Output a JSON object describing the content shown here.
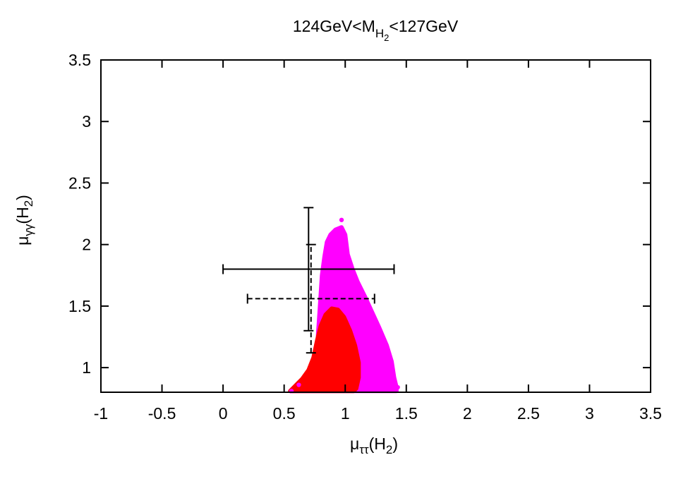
{
  "chart_data": {
    "type": "scatter",
    "title": {
      "pre": "124GeV<M",
      "sub": "H",
      "subsub": "2",
      "post": "<127GeV"
    },
    "xlabel": {
      "greek": "μ",
      "sub": "ττ",
      "paren": "(H",
      "paren_sub": "2",
      "close": ")"
    },
    "ylabel": {
      "greek": "μ",
      "sub": "γγ",
      "paren": "(H",
      "paren_sub": "2",
      "close": ")"
    },
    "xlim": [
      -1,
      3.5
    ],
    "ylim": [
      0.8,
      3.5
    ],
    "x_ticks": [
      -1,
      -0.5,
      0,
      0.5,
      1,
      1.5,
      2,
      2.5,
      3,
      3.5
    ],
    "x_tick_labels": [
      "-1",
      "-0.5",
      "0",
      "0.5",
      "1",
      "1.5",
      "2",
      "2.5",
      "3",
      "3.5"
    ],
    "y_ticks": [
      1,
      1.5,
      2,
      2.5,
      3,
      3.5
    ],
    "y_tick_labels": [
      "1",
      "1.5",
      "2",
      "2.5",
      "3",
      "3.5"
    ],
    "grid": false,
    "legend": "none",
    "regions": [
      {
        "color": "#ff00ff",
        "boundary": [
          [
            0.55,
            0.81
          ],
          [
            0.64,
            0.88
          ],
          [
            0.7,
            0.94
          ],
          [
            0.75,
            1.03
          ],
          [
            0.77,
            1.15
          ],
          [
            0.78,
            1.3
          ],
          [
            0.79,
            1.45
          ],
          [
            0.8,
            1.6
          ],
          [
            0.81,
            1.75
          ],
          [
            0.83,
            1.9
          ],
          [
            0.85,
            2.02
          ],
          [
            0.88,
            2.08
          ],
          [
            0.92,
            2.12
          ],
          [
            0.97,
            2.14
          ],
          [
            1.0,
            2.08
          ],
          [
            1.02,
            1.92
          ],
          [
            1.06,
            1.8
          ],
          [
            1.1,
            1.7
          ],
          [
            1.16,
            1.58
          ],
          [
            1.22,
            1.45
          ],
          [
            1.28,
            1.32
          ],
          [
            1.34,
            1.18
          ],
          [
            1.38,
            1.05
          ],
          [
            1.4,
            0.92
          ],
          [
            1.42,
            0.84
          ],
          [
            1.42,
            0.81
          ]
        ]
      },
      {
        "color": "#ff0000",
        "boundary": [
          [
            0.55,
            0.81
          ],
          [
            0.6,
            0.86
          ],
          [
            0.65,
            0.91
          ],
          [
            0.7,
            0.98
          ],
          [
            0.74,
            1.08
          ],
          [
            0.77,
            1.22
          ],
          [
            0.8,
            1.34
          ],
          [
            0.84,
            1.43
          ],
          [
            0.89,
            1.48
          ],
          [
            0.94,
            1.47
          ],
          [
            0.99,
            1.41
          ],
          [
            1.04,
            1.3
          ],
          [
            1.08,
            1.18
          ],
          [
            1.11,
            1.04
          ],
          [
            1.11,
            0.92
          ],
          [
            1.09,
            0.83
          ],
          [
            1.07,
            0.81
          ]
        ]
      }
    ],
    "outlier_points": [
      [
        0.97,
        2.2
      ],
      [
        0.56,
        0.81
      ],
      [
        0.62,
        0.86
      ],
      [
        1.43,
        0.84
      ]
    ],
    "error_bars": [
      {
        "name": "solid",
        "style": "solid",
        "x": 0.7,
        "y": 1.8,
        "x_err": [
          0.0,
          1.4
        ],
        "y_err": [
          1.3,
          2.3
        ]
      },
      {
        "name": "dashed",
        "style": "dashed",
        "x": 0.72,
        "y": 1.56,
        "x_err": [
          0.2,
          1.24
        ],
        "y_err": [
          1.12,
          2.0
        ]
      }
    ]
  }
}
